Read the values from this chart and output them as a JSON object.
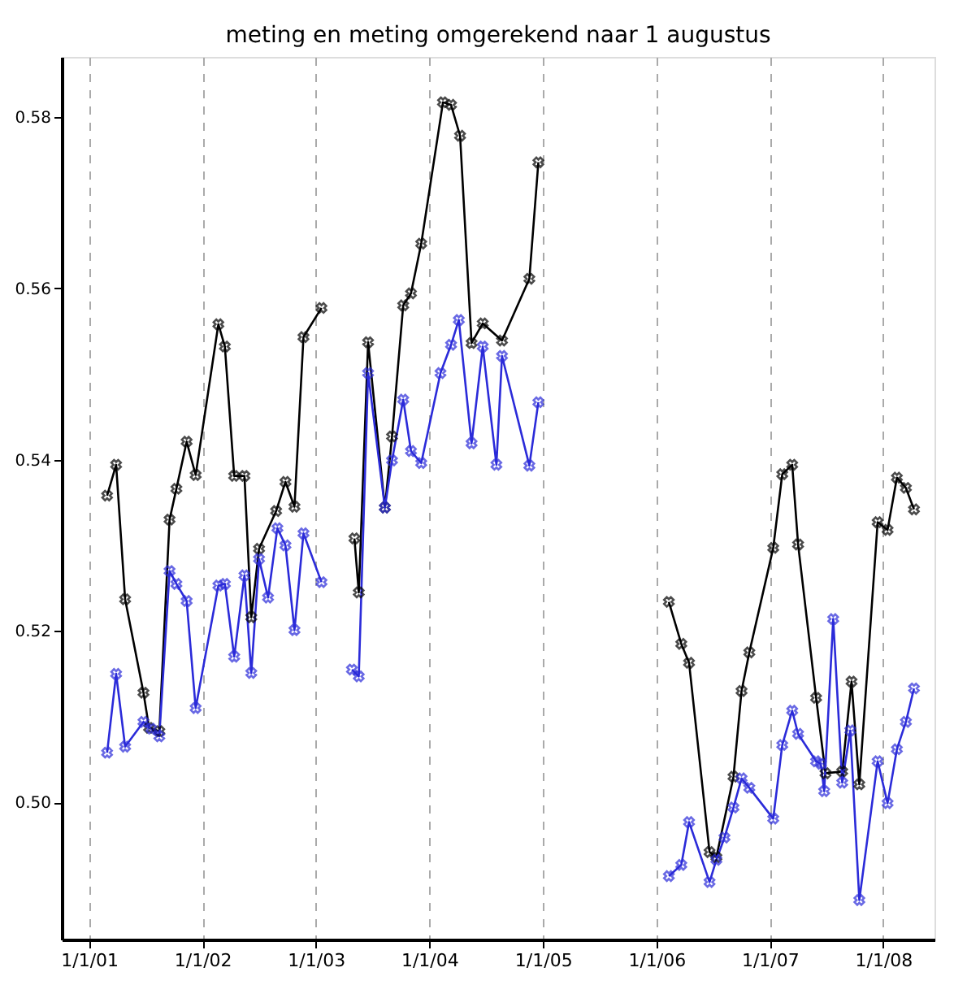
{
  "chart_data": {
    "type": "line",
    "title": "meting en meting omgerekend naar 1 augustus",
    "xlim": [
      "2000-10-05",
      "2008-06-14"
    ],
    "xticks": [
      {
        "value": "2001-01-01",
        "label": "1/1/01"
      },
      {
        "value": "2002-01-01",
        "label": "1/1/02"
      },
      {
        "value": "2003-01-01",
        "label": "1/1/03"
      },
      {
        "value": "2004-01-01",
        "label": "1/1/04"
      },
      {
        "value": "2005-01-01",
        "label": "1/1/05"
      },
      {
        "value": "2006-01-01",
        "label": "1/1/06"
      },
      {
        "value": "2007-01-01",
        "label": "1/1/07"
      },
      {
        "value": "2008-01-01",
        "label": "1/1/08"
      }
    ],
    "ylim": [
      0.484,
      0.587
    ],
    "yticks": [
      {
        "value": 0.5,
        "label": "0.50"
      },
      0.52,
      0.54,
      0.56,
      0.58
    ],
    "grid": "x",
    "marker": "cross",
    "line_style": "solid",
    "legend": false,
    "series": [
      {
        "color": "#000000",
        "x": [
          "2001-02-28",
          "2001-03-29",
          "2001-04-27",
          "2001-06-25",
          "2001-07-13",
          "2001-08-15",
          "2001-09-17",
          "2001-10-09",
          "2001-11-11",
          "2001-12-10",
          "2002-02-21",
          "2002-03-14",
          "2002-04-13",
          "2002-05-16",
          "2002-06-07",
          "2002-07-02",
          "2002-08-26",
          "2002-09-25",
          "2002-10-24",
          "2002-11-22",
          "2003-01-19",
          "2003-03-14",
          "2003-05-05",
          "2003-05-19",
          "2003-06-18",
          "2003-08-11",
          "2003-09-03",
          "2003-10-09",
          "2003-11-03",
          "2003-12-06",
          "2004-02-14",
          "2004-03-11",
          "2004-04-09",
          "2004-05-16",
          "2004-06-21",
          "2004-08-22",
          "2004-11-18",
          "2004-12-17",
          "2005-07-02",
          "2006-02-10",
          "2006-03-22",
          "2006-04-16",
          "2006-06-21",
          "2006-07-13",
          "2006-09-06",
          "2006-10-02",
          "2006-10-27",
          "2007-01-12",
          "2007-02-10",
          "2007-03-14",
          "2007-04-02",
          "2007-05-30",
          "2007-06-29",
          "2007-08-22",
          "2007-09-21",
          "2007-10-16",
          "2007-12-14",
          "2008-01-15",
          "2008-02-14",
          "2008-03-14",
          "2008-04-09"
        ],
        "values": [
          0.5358,
          0.5394,
          0.5237,
          0.5128,
          0.5087,
          0.5083,
          0.533,
          0.5366,
          0.5421,
          0.5382,
          0.5558,
          0.5532,
          0.5381,
          0.5381,
          0.5216,
          0.5296,
          0.534,
          0.5374,
          0.5345,
          0.5543,
          0.5577,
          null,
          0.5308,
          0.5245,
          0.5537,
          0.5344,
          0.5427,
          0.558,
          0.5594,
          0.5652,
          0.5817,
          0.5814,
          0.5778,
          0.5536,
          0.5559,
          0.5539,
          0.5611,
          0.5747,
          null,
          0.5234,
          0.5185,
          0.5163,
          0.4942,
          0.4936,
          0.503,
          0.513,
          0.5175,
          0.5297,
          0.5383,
          0.5394,
          0.5301,
          0.5122,
          0.5034,
          0.5036,
          0.5141,
          0.5021,
          0.5327,
          0.5318,
          0.5379,
          0.5367,
          0.5342
        ]
      },
      {
        "color": "#2b2bd9",
        "x": [
          "2001-02-28",
          "2001-03-29",
          "2001-04-27",
          "2001-06-25",
          "2001-07-20",
          "2001-08-15",
          "2001-09-17",
          "2001-10-09",
          "2001-11-11",
          "2001-12-10",
          "2002-02-21",
          "2002-03-14",
          "2002-04-13",
          "2002-05-16",
          "2002-06-07",
          "2002-07-02",
          "2002-07-31",
          "2002-08-30",
          "2002-09-25",
          "2002-10-24",
          "2002-11-22",
          "2003-01-19",
          "2003-03-14",
          "2003-04-27",
          "2003-05-19",
          "2003-06-18",
          "2003-08-11",
          "2003-09-03",
          "2003-10-09",
          "2003-11-03",
          "2003-12-06",
          "2004-02-06",
          "2004-03-11",
          "2004-04-05",
          "2004-05-16",
          "2004-06-21",
          "2004-08-04",
          "2004-08-22",
          "2004-11-18",
          "2004-12-17",
          "2005-07-02",
          "2006-02-10",
          "2006-03-22",
          "2006-04-16",
          "2006-06-21",
          "2006-07-13",
          "2006-08-08",
          "2006-09-06",
          "2006-10-02",
          "2006-10-27",
          "2007-01-12",
          "2007-02-10",
          "2007-03-14",
          "2007-04-02",
          "2007-05-30",
          "2007-06-14",
          "2007-06-25",
          "2007-07-24",
          "2007-08-22",
          "2007-09-17",
          "2007-10-16",
          "2007-12-14",
          "2008-01-15",
          "2008-02-14",
          "2008-03-14",
          "2008-04-09"
        ],
        "values": [
          0.5058,
          0.515,
          0.5065,
          0.5094,
          0.5086,
          0.5077,
          0.527,
          0.5255,
          0.5235,
          0.511,
          0.5253,
          0.5255,
          0.517,
          0.5265,
          0.5151,
          0.5284,
          0.5239,
          0.532,
          0.53,
          0.5201,
          0.5314,
          0.5257,
          null,
          0.5155,
          0.5147,
          0.5501,
          0.5344,
          0.5399,
          0.547,
          0.541,
          0.5396,
          0.5501,
          0.5534,
          0.5563,
          0.5419,
          0.5532,
          0.5394,
          0.5521,
          0.5393,
          0.5467,
          null,
          0.4914,
          0.4927,
          0.4977,
          0.4907,
          0.4933,
          0.4959,
          0.4994,
          0.5028,
          0.5017,
          0.4981,
          0.5067,
          0.5107,
          0.508,
          0.5048,
          0.5045,
          0.5013,
          0.5214,
          0.5023,
          0.5084,
          0.4886,
          0.5048,
          0.4999,
          0.5062,
          0.5094,
          0.5133
        ]
      }
    ]
  }
}
